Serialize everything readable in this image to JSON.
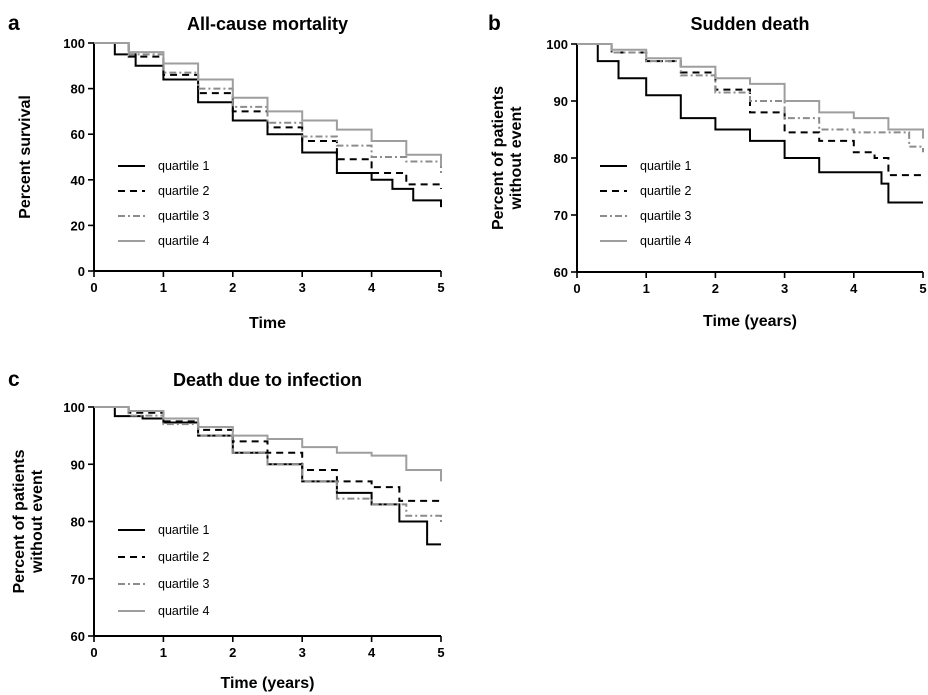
{
  "chart_data": [
    {
      "panel": "a",
      "type": "line",
      "title": "All-cause mortality",
      "xlabel": "Time",
      "ylabel": "Percent survival",
      "xlim": [
        0,
        5
      ],
      "ylim": [
        0,
        100
      ],
      "xticks": [
        "0",
        "1",
        "2",
        "3",
        "4",
        "5"
      ],
      "yticks": [
        "0",
        "20",
        "40",
        "60",
        "80",
        "100"
      ],
      "legend_position": "bottom-left",
      "series": [
        {
          "name": "quartile 1",
          "color": "#000000",
          "dash": "solid",
          "x": [
            0,
            0.3,
            0.6,
            1,
            1.5,
            2,
            2.5,
            3,
            3.5,
            4,
            4.3,
            4.6,
            5
          ],
          "y": [
            100,
            95,
            90,
            84,
            74,
            66,
            60,
            52,
            43,
            40,
            36,
            31,
            28
          ]
        },
        {
          "name": "quartile 2",
          "color": "#000000",
          "dash": "dashed",
          "x": [
            0,
            0.5,
            1,
            1.5,
            2,
            2.5,
            3,
            3.5,
            4,
            4.5,
            5
          ],
          "y": [
            100,
            94,
            86,
            78,
            70,
            63,
            57,
            49,
            43,
            38,
            36
          ]
        },
        {
          "name": "quartile 3",
          "color": "#8c8c8c",
          "dash": "dashdot",
          "x": [
            0,
            0.5,
            1,
            1.5,
            2,
            2.5,
            3,
            3.5,
            4,
            4.5,
            5
          ],
          "y": [
            100,
            95,
            87,
            80,
            72,
            65,
            59,
            55,
            50,
            48,
            43
          ]
        },
        {
          "name": "quartile 4",
          "color": "#9e9e9e",
          "dash": "solid",
          "x": [
            0,
            0.5,
            1,
            1.5,
            2,
            2.5,
            3,
            3.5,
            4,
            4.5,
            5
          ],
          "y": [
            100,
            96,
            91,
            84,
            76,
            70,
            66,
            62,
            57,
            51,
            46
          ]
        }
      ]
    },
    {
      "panel": "b",
      "type": "line",
      "title": "Sudden death",
      "xlabel": "Time (years)",
      "ylabel": "Percent of patients without event",
      "xlim": [
        0,
        5
      ],
      "ylim": [
        60,
        100
      ],
      "xticks": [
        "0",
        "1",
        "2",
        "3",
        "4",
        "5"
      ],
      "yticks": [
        "60",
        "70",
        "80",
        "90",
        "100"
      ],
      "legend_position": "bottom-left",
      "series": [
        {
          "name": "quartile 1",
          "color": "#000000",
          "dash": "solid",
          "x": [
            0,
            0.3,
            0.6,
            1,
            1.5,
            2,
            2.5,
            3,
            3.5,
            4,
            4.4,
            4.5,
            5
          ],
          "y": [
            100,
            97,
            94,
            91,
            87,
            85,
            83,
            80,
            77.5,
            77.5,
            75.5,
            72.2,
            72.2
          ]
        },
        {
          "name": "quartile 2",
          "color": "#000000",
          "dash": "dashed",
          "x": [
            0,
            0.5,
            1,
            1.5,
            2,
            2.5,
            3,
            3.5,
            4,
            4.3,
            4.5,
            5
          ],
          "y": [
            100,
            98.5,
            97,
            95,
            92,
            88,
            84.5,
            83,
            81,
            80,
            77,
            77
          ]
        },
        {
          "name": "quartile 3",
          "color": "#8c8c8c",
          "dash": "dashdot",
          "x": [
            0,
            0.5,
            1,
            1.5,
            2,
            2.5,
            3,
            3.5,
            4,
            4.5,
            4.8,
            5
          ],
          "y": [
            100,
            98.5,
            97,
            94.5,
            91.5,
            90,
            87,
            85,
            84.5,
            84.5,
            82,
            81
          ]
        },
        {
          "name": "quartile 4",
          "color": "#9e9e9e",
          "dash": "solid",
          "x": [
            0,
            0.5,
            1,
            1.5,
            2,
            2.5,
            3,
            3.5,
            4,
            4.5,
            5
          ],
          "y": [
            100,
            99,
            97.5,
            96,
            94,
            93,
            90,
            88,
            87,
            85,
            83.4
          ]
        }
      ]
    },
    {
      "panel": "c",
      "type": "line",
      "title": "Death due to infection",
      "xlabel": "Time (years)",
      "ylabel": "Percent of patients without event",
      "xlim": [
        0,
        5
      ],
      "ylim": [
        60,
        100
      ],
      "xticks": [
        "0",
        "1",
        "2",
        "3",
        "4",
        "5"
      ],
      "yticks": [
        "60",
        "70",
        "80",
        "90",
        "100"
      ],
      "legend_position": "bottom-left",
      "series": [
        {
          "name": "quartile 1",
          "color": "#000000",
          "dash": "solid",
          "x": [
            0,
            0.3,
            0.7,
            1,
            1.5,
            2,
            2.5,
            3,
            3.5,
            4,
            4.4,
            4.8,
            5
          ],
          "y": [
            100,
            98.4,
            98,
            97.3,
            95,
            92,
            90,
            87,
            85,
            83,
            80,
            76,
            76
          ]
        },
        {
          "name": "quartile 2",
          "color": "#000000",
          "dash": "dashed",
          "x": [
            0,
            0.5,
            1,
            1.5,
            2,
            2.5,
            3,
            3.5,
            4,
            4.4,
            5
          ],
          "y": [
            100,
            99,
            97.5,
            96,
            94,
            92,
            89,
            87,
            86,
            83.6,
            83.6
          ]
        },
        {
          "name": "quartile 3",
          "color": "#8c8c8c",
          "dash": "dashdot",
          "x": [
            0,
            0.5,
            1,
            1.5,
            2,
            2.5,
            3,
            3.5,
            4,
            4.5,
            5
          ],
          "y": [
            100,
            98.5,
            97,
            95,
            92,
            90,
            87,
            84,
            83,
            81,
            79.5
          ]
        },
        {
          "name": "quartile 4",
          "color": "#9e9e9e",
          "dash": "solid",
          "x": [
            0,
            0.5,
            1,
            1.5,
            2,
            2.5,
            3,
            3.5,
            4,
            4.5,
            4.8,
            5
          ],
          "y": [
            100,
            99.3,
            98,
            96.5,
            95,
            94.4,
            93,
            92,
            91.5,
            89,
            89,
            87
          ]
        }
      ]
    }
  ]
}
